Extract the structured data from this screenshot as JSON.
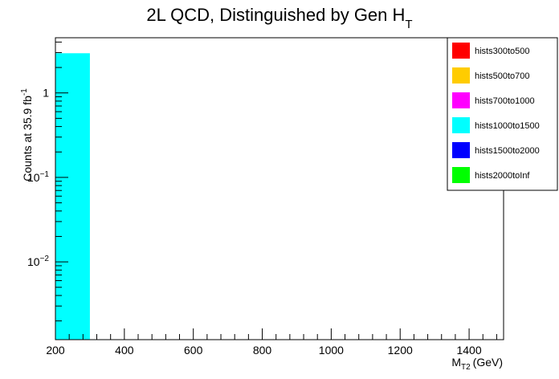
{
  "chart_data": {
    "type": "bar",
    "title": "2L QCD, Distinguished by Gen H",
    "title_sub": "T",
    "xlabel": "M",
    "xlabel_sub": "T2",
    "xlabel_unit": "(GeV)",
    "ylabel": "Counts at 35.9 fb",
    "ylabel_sup": "-1",
    "xlim": [
      200,
      1500
    ],
    "ylim": [
      0.0012,
      4.5
    ],
    "y_scale": "log",
    "x_ticks": [
      "200",
      "400",
      "600",
      "800",
      "1000",
      "1200",
      "1400"
    ],
    "y_ticks": [
      {
        "base": "1",
        "exp": ""
      },
      {
        "base": "10",
        "exp": "−1"
      },
      {
        "base": "10",
        "exp": "−2"
      }
    ],
    "legend_position": "top-right",
    "series": [
      {
        "name": "hists300to500",
        "color": "#ff0000",
        "bins": []
      },
      {
        "name": "hists500to700",
        "color": "#ffcc00",
        "bins": []
      },
      {
        "name": "hists700to1000",
        "color": "#ff00ff",
        "bins": []
      },
      {
        "name": "hists1000to1500",
        "color": "#00ffff",
        "bins": [
          {
            "x0": 200,
            "x1": 300,
            "y": 2.95
          }
        ]
      },
      {
        "name": "hists1500to2000",
        "color": "#0000ff",
        "bins": []
      },
      {
        "name": "hists2000toInf",
        "color": "#00ff00",
        "bins": []
      }
    ]
  }
}
